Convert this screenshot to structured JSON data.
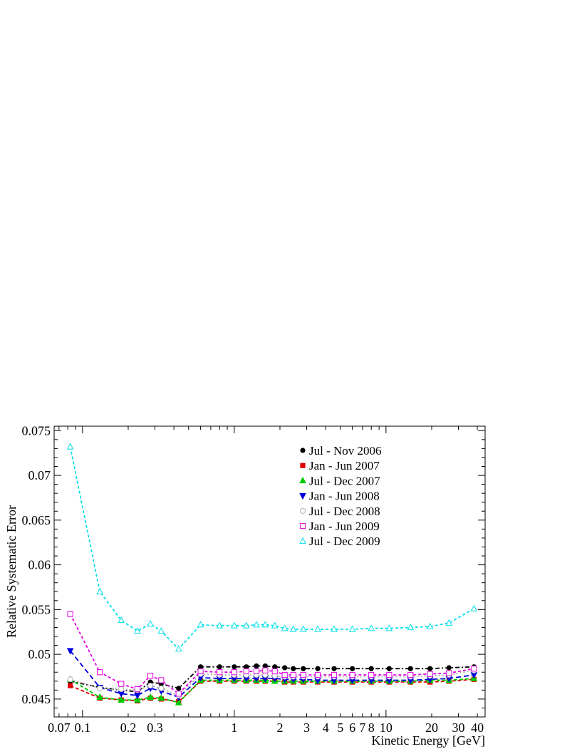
{
  "chart_data": {
    "type": "line",
    "xlabel": "Kinetic Energy [GeV]",
    "ylabel": "Relative Systematic Error",
    "x_scale": "log",
    "xlim": [
      0.065,
      45
    ],
    "ylim": [
      0.043,
      0.0755
    ],
    "x_ticks": [
      {
        "v": 0.07,
        "label": "0.07"
      },
      {
        "v": 0.1,
        "label": "0.1"
      },
      {
        "v": 0.2,
        "label": "0.2"
      },
      {
        "v": 0.3,
        "label": "0.3"
      },
      {
        "v": 1,
        "label": "1"
      },
      {
        "v": 2,
        "label": "2"
      },
      {
        "v": 3,
        "label": "3"
      },
      {
        "v": 4,
        "label": "4"
      },
      {
        "v": 5,
        "label": "5"
      },
      {
        "v": 6,
        "label": "6"
      },
      {
        "v": 7,
        "label": "7"
      },
      {
        "v": 8,
        "label": "8"
      },
      {
        "v": 10,
        "label": "10"
      },
      {
        "v": 20,
        "label": "20"
      },
      {
        "v": 30,
        "label": "30"
      },
      {
        "v": 40,
        "label": "40"
      }
    ],
    "y_ticks": [
      {
        "v": 0.045,
        "label": "0.045"
      },
      {
        "v": 0.05,
        "label": "0.05"
      },
      {
        "v": 0.055,
        "label": "0.055"
      },
      {
        "v": 0.06,
        "label": "0.06"
      },
      {
        "v": 0.065,
        "label": "0.065"
      },
      {
        "v": 0.07,
        "label": "0.07"
      },
      {
        "v": 0.075,
        "label": "0.075"
      }
    ],
    "grid": false,
    "legend_position": "top-right",
    "x": [
      0.083,
      0.13,
      0.18,
      0.23,
      0.28,
      0.33,
      0.43,
      0.6,
      0.8,
      1.0,
      1.2,
      1.4,
      1.6,
      1.85,
      2.15,
      2.45,
      2.85,
      3.55,
      4.55,
      6.0,
      8.0,
      10.5,
      14.5,
      19.5,
      26.0,
      38.0
    ],
    "series": [
      {
        "name": "Jul - Nov 2006",
        "color": "#000000",
        "marker": "circle-filled",
        "dash": "6,3,2,3",
        "values": [
          0.047,
          0.0463,
          0.046,
          0.0458,
          0.0469,
          0.0467,
          0.0462,
          0.0486,
          0.0486,
          0.0486,
          0.0486,
          0.0487,
          0.0487,
          0.0486,
          0.0485,
          0.0484,
          0.0484,
          0.0484,
          0.0484,
          0.0484,
          0.0484,
          0.0484,
          0.0484,
          0.0484,
          0.0485,
          0.0486
        ]
      },
      {
        "name": "Jan - Jun 2007",
        "color": "#e00000",
        "marker": "square-filled",
        "dash": "5,3",
        "values": [
          0.0465,
          0.0451,
          0.0449,
          0.0448,
          0.0451,
          0.045,
          0.0447,
          0.047,
          0.047,
          0.047,
          0.047,
          0.047,
          0.047,
          0.047,
          0.0469,
          0.0469,
          0.0469,
          0.0469,
          0.0469,
          0.0469,
          0.0469,
          0.0469,
          0.0469,
          0.0469,
          0.047,
          0.0472
        ]
      },
      {
        "name": "Jul - Dec 2007",
        "color": "#00cc00",
        "marker": "triangle-up-filled",
        "dash": "5,3",
        "values": [
          0.0472,
          0.0452,
          0.0449,
          0.0449,
          0.0452,
          0.0451,
          0.0446,
          0.0471,
          0.0471,
          0.0471,
          0.0471,
          0.0471,
          0.0471,
          0.047,
          0.047,
          0.047,
          0.047,
          0.047,
          0.047,
          0.047,
          0.047,
          0.047,
          0.047,
          0.0471,
          0.0471,
          0.0473
        ]
      },
      {
        "name": "Jan - Jun 2008",
        "color": "#0000e0",
        "marker": "triangle-down-filled",
        "dash": "7,4",
        "values": [
          0.0504,
          0.0463,
          0.0456,
          0.0454,
          0.0462,
          0.0459,
          0.0452,
          0.0474,
          0.0473,
          0.0473,
          0.0473,
          0.0473,
          0.0473,
          0.0473,
          0.0472,
          0.0472,
          0.0472,
          0.0471,
          0.0471,
          0.0471,
          0.0471,
          0.0471,
          0.0471,
          0.0472,
          0.0473,
          0.0477
        ]
      },
      {
        "name": "Jul - Dec 2008",
        "color": "#b0b0b0",
        "marker": "circle-open",
        "dash": "2,3",
        "values": [
          0.0472,
          0.0462,
          0.0461,
          0.046,
          0.0465,
          0.0462,
          0.0454,
          0.0478,
          0.0477,
          0.0477,
          0.0477,
          0.0477,
          0.0477,
          0.0476,
          0.0475,
          0.0475,
          0.0475,
          0.0475,
          0.0475,
          0.0475,
          0.0475,
          0.0475,
          0.0475,
          0.0476,
          0.0477,
          0.0482
        ]
      },
      {
        "name": "Jan - Jun 2009",
        "color": "#e000e0",
        "marker": "square-open",
        "dash": "4,3",
        "values": [
          0.0545,
          0.048,
          0.0467,
          0.0461,
          0.0476,
          0.0471,
          0.0456,
          0.0481,
          0.048,
          0.048,
          0.0481,
          0.0481,
          0.0482,
          0.0481,
          0.0477,
          0.0477,
          0.0477,
          0.0477,
          0.0477,
          0.0477,
          0.0477,
          0.0477,
          0.0477,
          0.0478,
          0.0479,
          0.0484
        ]
      },
      {
        "name": "Jul - Dec 2009",
        "color": "#00e0e8",
        "marker": "triangle-up-open",
        "dash": "4,3",
        "values": [
          0.0732,
          0.057,
          0.0538,
          0.0526,
          0.0534,
          0.0526,
          0.0506,
          0.0533,
          0.0532,
          0.0532,
          0.0532,
          0.0533,
          0.0533,
          0.0532,
          0.0529,
          0.0528,
          0.0528,
          0.0528,
          0.0528,
          0.0528,
          0.0529,
          0.0529,
          0.053,
          0.0531,
          0.0535,
          0.0551
        ]
      }
    ]
  }
}
